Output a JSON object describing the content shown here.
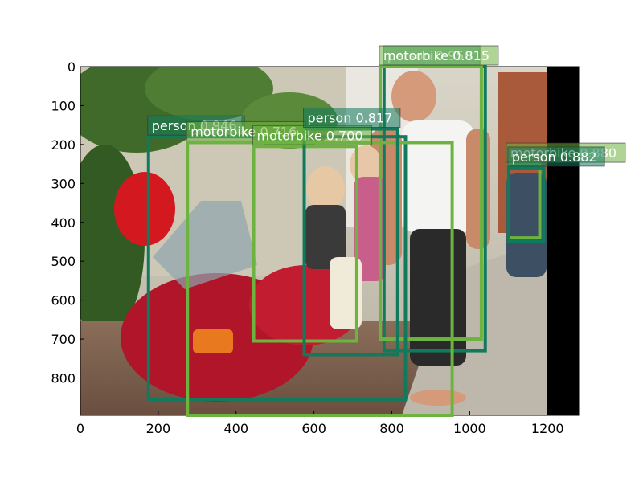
{
  "colors": {
    "person": "#127a5c",
    "motorbike": "#6db33f",
    "label_text": "#ffffff",
    "letterbox": "#000000"
  },
  "axes": {
    "x_ticks": [
      0,
      200,
      400,
      600,
      800,
      1000,
      1200
    ],
    "y_ticks": [
      0,
      100,
      200,
      300,
      400,
      500,
      600,
      700,
      800
    ],
    "xlim": [
      0,
      1280
    ],
    "ylim": [
      896,
      0
    ],
    "image_width": 1200
  },
  "detections": [
    {
      "cls": "person",
      "label": "person 0.950",
      "x1": 780,
      "y1": 0,
      "x2": 1040,
      "y2": 730
    },
    {
      "cls": "motorbike",
      "label": "motorbike 0.815",
      "x1": 770,
      "y1": 0,
      "x2": 1030,
      "y2": 700
    },
    {
      "cls": "person",
      "label": "person 0.946",
      "x1": 175,
      "y1": 180,
      "x2": 835,
      "y2": 855
    },
    {
      "cls": "motorbike",
      "label": "motorbike 0.716",
      "x1": 275,
      "y1": 195,
      "x2": 955,
      "y2": 896
    },
    {
      "cls": "motorbike",
      "label": "motorbike 0.700",
      "x1": 445,
      "y1": 205,
      "x2": 710,
      "y2": 705
    },
    {
      "cls": "person",
      "label": "person 0.817",
      "x1": 575,
      "y1": 160,
      "x2": 815,
      "y2": 740
    },
    {
      "cls": "motorbike",
      "label": "motorbike 0.880",
      "x1": 1100,
      "y1": 250,
      "x2": 1180,
      "y2": 440
    },
    {
      "cls": "person",
      "label": "person 0.882",
      "x1": 1100,
      "y1": 260,
      "x2": 1190,
      "y2": 450
    }
  ]
}
